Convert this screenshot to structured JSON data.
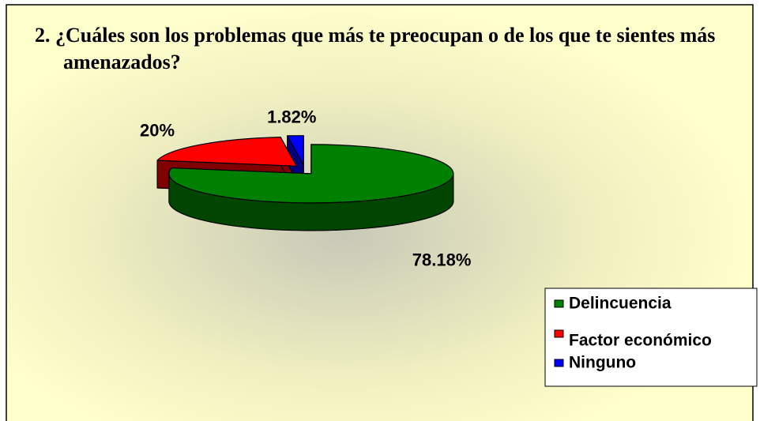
{
  "chart_data": {
    "type": "pie",
    "title": "2. ¿Cuáles son los problemas que más te preocupan o de los que te sientes más amenazados?",
    "categories": [
      "Delincuencia",
      "Factor económico",
      "Ninguno"
    ],
    "values": [
      78.18,
      20,
      1.82
    ],
    "value_labels": [
      "78.18%",
      "20%",
      "1.82%"
    ],
    "colors": [
      "#008000",
      "#ff0000",
      "#0000ff"
    ],
    "legend": "right"
  }
}
